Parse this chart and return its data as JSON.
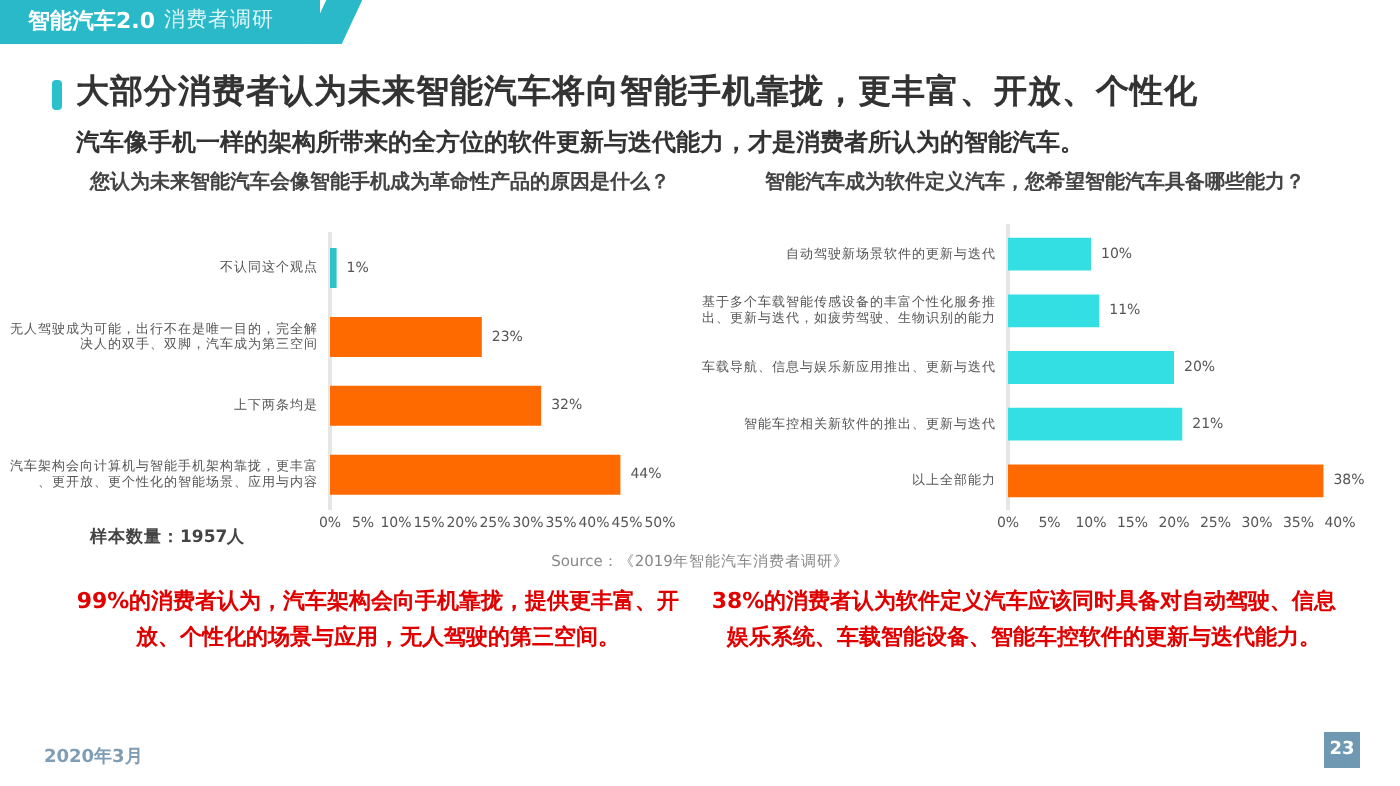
{
  "chart_data": [
    {
      "type": "bar",
      "orientation": "horizontal",
      "title": "您认为未来智能汽车会像智能手机成为革命性产品的原因是什么？",
      "categories": [
        "不认同这个观点",
        "无人驾驶成为可能，出行不在是唯一目的，完全解决人的双手、双脚，汽车成为第三空间",
        "上下两条均是",
        "汽车架构会向计算机与智能手机架构靠拢，更丰富、更开放、更个性化的智能场景、应用与内容"
      ],
      "values": [
        1,
        23,
        32,
        44
      ],
      "colors": [
        "#2ec4c6",
        "#ff6a00",
        "#ff6a00",
        "#ff6a00"
      ],
      "value_labels": [
        "1%",
        "23%",
        "32%",
        "44%"
      ],
      "xlim": [
        0,
        50
      ],
      "xticks": [
        {
          "value": 0,
          "label": "0%"
        },
        {
          "value": 5,
          "label": "5%"
        },
        {
          "value": 10,
          "label": "10%"
        },
        {
          "value": 15,
          "label": "15%"
        },
        {
          "value": 20,
          "label": "20%"
        },
        {
          "value": 25,
          "label": "25%"
        },
        {
          "value": 30,
          "label": "30%"
        },
        {
          "value": 35,
          "label": "35%"
        },
        {
          "value": 40,
          "label": "40%"
        },
        {
          "value": 45,
          "label": "45%"
        },
        {
          "value": 50,
          "label": "50%"
        }
      ],
      "grid": false,
      "legend": false,
      "annotations": [
        "智能汽车2.0",
        "消费者调研",
        "大部分消费者认为未来智能汽车将向智能手机靠拢，更丰富、开放、个性化",
        "汽车像手机一样的架构所带来的全方位的软件更新与迭代能力，才是消费者所认为的智能汽车。",
        "样本数量：1957人",
        "99%的消费者认为，汽车架构会向手机靠拢，提供更丰富、开放、个性化的场景与应用，无人驾驶的第三空间。"
      ]
    },
    {
      "type": "bar",
      "orientation": "horizontal",
      "title": "智能汽车成为软件定义汽车，您希望智能汽车具备哪些能力？",
      "categories": [
        "自动驾驶新场景软件的更新与迭代",
        "基于多个车载智能传感设备的丰富个性化服务推出、更新与迭代，如疲劳驾驶、生物识别的能力",
        "车载导航、信息与娱乐新应用推出、更新与迭代",
        "智能车控相关新软件的推出、更新与迭代",
        "以上全部能力"
      ],
      "values": [
        10,
        11,
        20,
        21,
        38
      ],
      "colors": [
        "#33dfe3",
        "#33dfe3",
        "#33dfe3",
        "#33dfe3",
        "#ff6a00"
      ],
      "value_labels": [
        "10%",
        "11%",
        "20%",
        "21%",
        "38%"
      ],
      "xlim": [
        0,
        40
      ],
      "xticks": [
        {
          "value": 0,
          "label": "0%"
        },
        {
          "value": 5,
          "label": "5%"
        },
        {
          "value": 10,
          "label": "10%"
        },
        {
          "value": 15,
          "label": "15%"
        },
        {
          "value": 20,
          "label": "20%"
        },
        {
          "value": 25,
          "label": "25%"
        },
        {
          "value": 30,
          "label": "30%"
        },
        {
          "value": 35,
          "label": "35%"
        },
        {
          "value": 40,
          "label": "40%"
        }
      ],
      "grid": false,
      "legend": false,
      "annotations": [
        "Source：《2019年智能汽车消费者调研》",
        "38%的消费者认为软件定义汽车应该同时具备对自动驾驶、信息娱乐系统、车载智能设备、智能车控软件的更新与迭代能力。",
        "2020年3月",
        "23"
      ]
    }
  ]
}
